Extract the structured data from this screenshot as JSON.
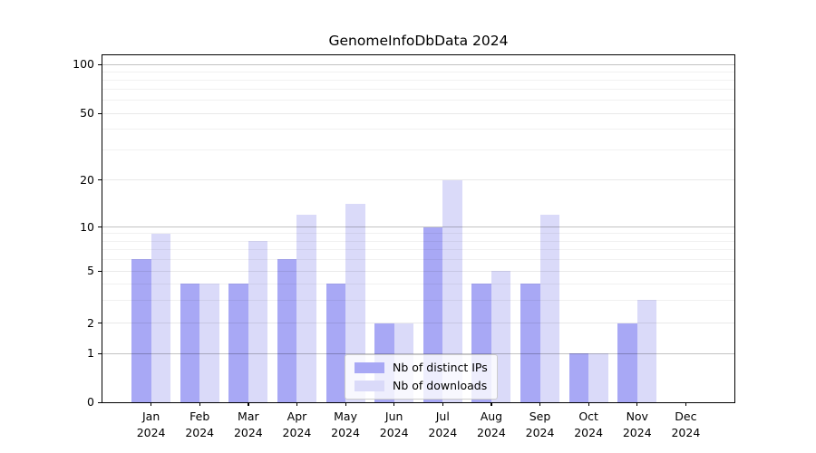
{
  "figure": {
    "title": "GenomeInfoDbData 2024"
  },
  "chart_data": {
    "type": "bar",
    "title": "GenomeInfoDbData 2024",
    "categories": [
      "Jan",
      "Feb",
      "Mar",
      "Apr",
      "May",
      "Jun",
      "Jul",
      "Aug",
      "Sep",
      "Oct",
      "Nov",
      "Dec"
    ],
    "year_label": "2024",
    "series": [
      {
        "name": "Nb of distinct IPs",
        "color": "#a8a8f5",
        "values": [
          6,
          4,
          4,
          6,
          4,
          2,
          10,
          4,
          4,
          1,
          2,
          0
        ]
      },
      {
        "name": "Nb of downloads",
        "color": "#dadaf9",
        "values": [
          9,
          4,
          8,
          12,
          14,
          2,
          20,
          5,
          12,
          1,
          3,
          0
        ]
      }
    ],
    "xlabel": "",
    "ylabel": "",
    "ylim": [
      0,
      100
    ],
    "y_major_ticks": [
      0,
      1,
      2,
      5,
      10,
      20,
      50,
      100
    ],
    "y_decade_gridlines": [
      1,
      10,
      100
    ],
    "y_minor_gridlines": [
      3,
      4,
      6,
      7,
      8,
      9,
      30,
      40,
      60,
      70,
      80,
      90
    ],
    "y_scale": "log-like (zero baseline, logarithmic spacing above 1)",
    "grid": true,
    "legend": {
      "position": "lower-center-inside",
      "items": [
        "Nb of distinct IPs",
        "Nb of downloads"
      ]
    }
  }
}
